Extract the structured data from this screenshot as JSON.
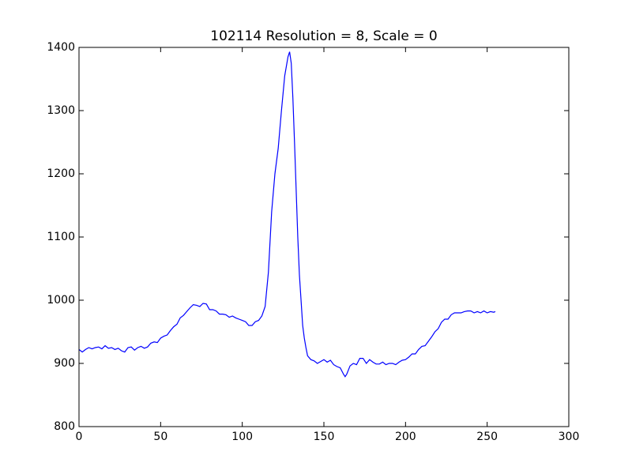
{
  "chart_data": {
    "type": "line",
    "title": "102114 Resolution = 8, Scale = 0",
    "x": [
      0,
      2,
      4,
      6,
      8,
      10,
      12,
      14,
      16,
      18,
      20,
      22,
      24,
      26,
      28,
      30,
      32,
      34,
      36,
      38,
      40,
      42,
      44,
      46,
      48,
      50,
      52,
      54,
      56,
      58,
      60,
      62,
      64,
      66,
      68,
      70,
      72,
      74,
      76,
      78,
      80,
      82,
      84,
      86,
      88,
      90,
      92,
      94,
      96,
      98,
      100,
      102,
      104,
      106,
      108,
      110,
      112,
      114,
      116,
      118,
      120,
      122,
      124,
      126,
      128,
      129,
      130,
      131,
      132,
      133,
      134,
      135,
      136,
      137,
      138,
      139,
      140,
      142,
      144,
      146,
      148,
      150,
      152,
      154,
      156,
      158,
      160,
      162,
      163,
      164,
      166,
      168,
      170,
      172,
      174,
      176,
      178,
      180,
      182,
      184,
      186,
      188,
      190,
      192,
      194,
      196,
      198,
      200,
      202,
      204,
      206,
      208,
      210,
      212,
      214,
      216,
      218,
      220,
      222,
      224,
      226,
      228,
      230,
      232,
      234,
      236,
      238,
      240,
      242,
      244,
      246,
      248,
      250,
      252,
      254,
      255
    ],
    "values": [
      922,
      918,
      922,
      925,
      923,
      925,
      926,
      923,
      928,
      924,
      925,
      922,
      924,
      920,
      918,
      925,
      926,
      921,
      925,
      927,
      924,
      926,
      932,
      934,
      933,
      940,
      943,
      945,
      952,
      958,
      962,
      972,
      976,
      982,
      988,
      993,
      992,
      990,
      995,
      994,
      985,
      985,
      983,
      978,
      978,
      977,
      973,
      975,
      972,
      970,
      968,
      966,
      960,
      960,
      966,
      968,
      975,
      990,
      1044,
      1140,
      1200,
      1240,
      1300,
      1355,
      1385,
      1393,
      1375,
      1320,
      1250,
      1175,
      1100,
      1040,
      1000,
      960,
      940,
      925,
      912,
      906,
      904,
      900,
      903,
      906,
      902,
      905,
      898,
      895,
      893,
      883,
      879,
      883,
      896,
      900,
      898,
      908,
      908,
      900,
      906,
      902,
      899,
      899,
      902,
      898,
      900,
      900,
      898,
      902,
      905,
      906,
      910,
      915,
      915,
      922,
      927,
      928,
      935,
      942,
      950,
      955,
      965,
      970,
      970,
      977,
      980,
      980,
      980,
      982,
      983,
      983,
      980,
      982,
      980,
      983,
      980,
      982,
      981,
      982
    ],
    "color": "#0000ff",
    "xlim": [
      0,
      300
    ],
    "xticks": [
      0,
      50,
      100,
      150,
      200,
      250,
      300
    ],
    "ylim": [
      800,
      1400
    ],
    "yticks": [
      800,
      900,
      1000,
      1100,
      1200,
      1300,
      1400
    ]
  }
}
